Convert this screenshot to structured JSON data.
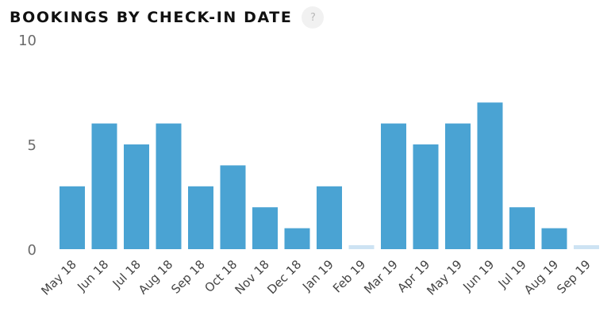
{
  "header": {
    "title": "BOOKINGS BY CHECK-IN DATE",
    "help_label": "?"
  },
  "colors": {
    "bar": "#4aa3d3",
    "bar_placeholder": "#cde3f3"
  },
  "chart_data": {
    "type": "bar",
    "title": "BOOKINGS BY CHECK-IN DATE",
    "xlabel": "",
    "ylabel": "",
    "ylim": [
      0,
      10
    ],
    "yticks": [
      0,
      5,
      10
    ],
    "grid": false,
    "categories": [
      "May 18",
      "Jun 18",
      "Jul 18",
      "Aug 18",
      "Sep 18",
      "Oct 18",
      "Nov 18",
      "Dec 18",
      "Jan 19",
      "Feb 19",
      "Mar 19",
      "Apr 19",
      "May 19",
      "Jun 19",
      "Jul 19",
      "Aug 19",
      "Sep 19"
    ],
    "values": [
      3,
      6,
      5,
      6,
      3,
      4,
      2,
      1,
      3,
      0,
      6,
      5,
      6,
      7,
      2,
      1,
      0
    ]
  }
}
